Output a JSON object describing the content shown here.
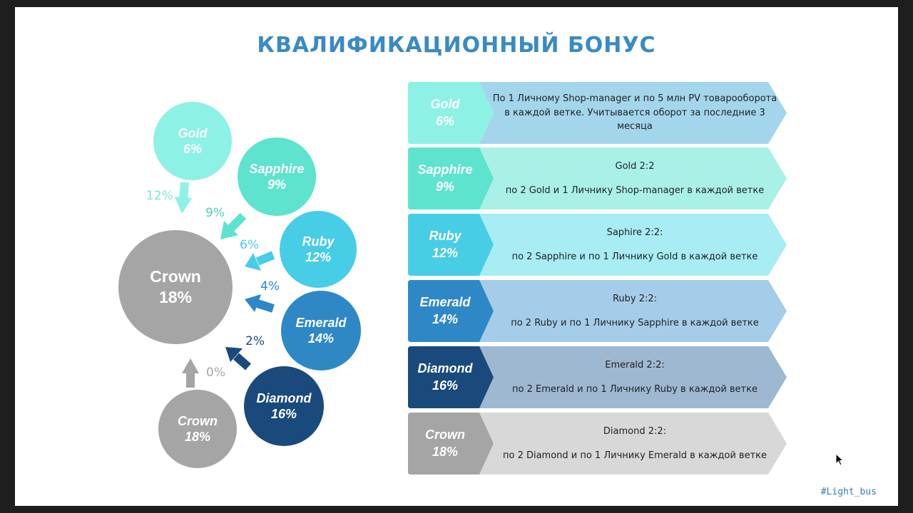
{
  "title": "КВАЛИФИКАЦИОННЫЙ БОНУС",
  "hashtag": "#Light_bus",
  "colors": {
    "gold": "#8df1e6",
    "sapphire": "#5ee3cf",
    "ruby": "#48cde6",
    "emerald": "#2e88c6",
    "diamond": "#1a4a7c",
    "crown": "#a5a5a5",
    "title": "#3a8ac4"
  },
  "circles": [
    {
      "id": "gold",
      "name": "Gold",
      "pct": "6%"
    },
    {
      "id": "sapphire",
      "name": "Sapphire",
      "pct": "9%"
    },
    {
      "id": "ruby",
      "name": "Ruby",
      "pct": "12%"
    },
    {
      "id": "emerald",
      "name": "Emerald",
      "pct": "14%"
    },
    {
      "id": "diamond",
      "name": "Diamond",
      "pct": "16%"
    },
    {
      "id": "crown_big",
      "name": "Crown",
      "pct": "18%"
    },
    {
      "id": "crown_small",
      "name": "Crown",
      "pct": "18%"
    }
  ],
  "arrow_labels": [
    "12%",
    "9%",
    "6%",
    "4%",
    "2%",
    "0%"
  ],
  "rows": [
    {
      "name": "Gold",
      "pct": "6%",
      "header": "",
      "text": "По 1 Личному Shop-manager и по 5 млн PV товарооборота в каждой ветке. Учитывается оборот за последние 3 месяца"
    },
    {
      "name": "Sapphire",
      "pct": "9%",
      "header": "Gold 2:2",
      "text": "по 2 Gold  и 1 Личнику Shop-manager в каждой ветке"
    },
    {
      "name": "Ruby",
      "pct": "12%",
      "header": "Saphire 2:2:",
      "text": "по 2 Sapphire и по 1 Личнику Gold в каждой ветке"
    },
    {
      "name": "Emerald",
      "pct": "14%",
      "header": "Ruby 2:2:",
      "text": "по 2 Ruby и по 1 Личнику Sapphire в каждой ветке"
    },
    {
      "name": "Diamond",
      "pct": "16%",
      "header": "Emerald 2:2:",
      "text": "по 2 Emerald  и по 1 Личнику Ruby в каждой ветке"
    },
    {
      "name": "Crown",
      "pct": "18%",
      "header": "Diamond 2:2:",
      "text": "по 2 Diamond и по 1 Личнику Emerald в каждой ветке"
    }
  ]
}
